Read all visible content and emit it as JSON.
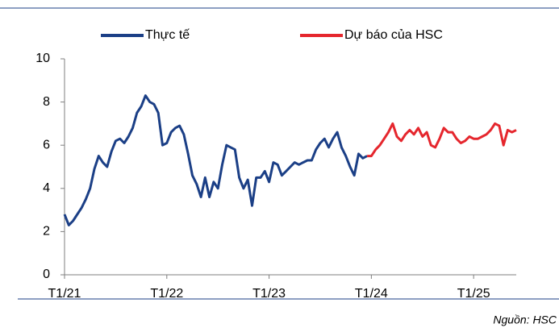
{
  "chart_data": {
    "type": "line",
    "source": "Nguồn: HSC",
    "legend": "top",
    "grid": false,
    "x": [
      0,
      0.5,
      1,
      1.5,
      2,
      2.5,
      3,
      3.5,
      4,
      4.5,
      5,
      5.5,
      6,
      6.5,
      7,
      7.5,
      8,
      8.5,
      9,
      9.5,
      10,
      10.5,
      11,
      11.5,
      12,
      12.5,
      13,
      13.5,
      14,
      14.5,
      15,
      15.5,
      16,
      16.5,
      17,
      17.5,
      18,
      18.5,
      19,
      19.5,
      20,
      20.5,
      21,
      21.5,
      22,
      22.5,
      23,
      23.5,
      24,
      24.5,
      25,
      25.5,
      26,
      26.5,
      27,
      27.5,
      28,
      28.5,
      29,
      29.5,
      30,
      30.5,
      31,
      31.5,
      32,
      32.5,
      33,
      33.5,
      34,
      34.5,
      35,
      35.5,
      36,
      36.5,
      37,
      37.5,
      38,
      38.5,
      39,
      39.5,
      40,
      40.5,
      41,
      41.5,
      42,
      42.5,
      43,
      43.5,
      44,
      44.5,
      45,
      45.5,
      46,
      46.5,
      47,
      47.5,
      48,
      48.5,
      49,
      49.5,
      50,
      50.5,
      51,
      51.5,
      52,
      52.5,
      53
    ],
    "xlim": [
      0,
      53
    ],
    "xticks": [
      {
        "value": 0,
        "label": "T1/21"
      },
      {
        "value": 12,
        "label": "T1/22"
      },
      {
        "value": 24,
        "label": "T1/23"
      },
      {
        "value": 36,
        "label": "T1/24"
      },
      {
        "value": 48,
        "label": "T1/25"
      }
    ],
    "ylim": [
      0,
      10
    ],
    "yticks": [
      0,
      2,
      4,
      6,
      8,
      10
    ],
    "series": [
      {
        "name": "Thực tế",
        "color": "#1b3f86",
        "values": [
          2.8,
          2.3,
          2.5,
          2.8,
          3.1,
          3.5,
          4.0,
          4.9,
          5.5,
          5.2,
          5.0,
          5.7,
          6.2,
          6.3,
          6.1,
          6.4,
          6.8,
          7.5,
          7.8,
          8.3,
          8.0,
          7.9,
          7.5,
          6.0,
          6.1,
          6.6,
          6.8,
          6.9,
          6.5,
          5.6,
          4.6,
          4.2,
          3.6,
          4.5,
          3.6,
          4.3,
          4.0,
          5.1,
          6.0,
          5.9,
          5.8,
          4.5,
          4.0,
          4.4,
          3.2,
          4.5,
          4.5,
          4.8,
          4.3,
          5.2,
          5.1,
          4.6,
          4.8,
          5.0,
          5.2,
          5.1,
          5.2,
          5.3,
          5.3,
          5.8,
          6.1,
          6.3,
          5.9,
          6.3,
          6.6,
          5.9,
          5.5,
          5.0,
          4.6,
          5.6,
          5.4,
          5.5,
          null,
          null,
          null,
          null,
          null,
          null,
          null,
          null,
          null,
          null,
          null,
          null,
          null,
          null,
          null,
          null,
          null,
          null,
          null,
          null,
          null,
          null,
          null,
          null,
          null,
          null,
          null,
          null,
          null,
          null,
          null,
          null,
          null,
          null,
          null
        ]
      },
      {
        "name": "Dự báo của HSC",
        "color": "#e5262d",
        "values": [
          null,
          null,
          null,
          null,
          null,
          null,
          null,
          null,
          null,
          null,
          null,
          null,
          null,
          null,
          null,
          null,
          null,
          null,
          null,
          null,
          null,
          null,
          null,
          null,
          null,
          null,
          null,
          null,
          null,
          null,
          null,
          null,
          null,
          null,
          null,
          null,
          null,
          null,
          null,
          null,
          null,
          null,
          null,
          null,
          null,
          null,
          null,
          null,
          null,
          null,
          null,
          null,
          null,
          null,
          null,
          null,
          null,
          null,
          null,
          null,
          null,
          null,
          null,
          null,
          null,
          null,
          null,
          null,
          null,
          null,
          null,
          5.5,
          5.5,
          5.8,
          6.0,
          6.3,
          6.6,
          7.0,
          6.4,
          6.2,
          6.5,
          6.7,
          6.5,
          6.8,
          6.4,
          6.6,
          6.0,
          5.9,
          6.3,
          6.8,
          6.6,
          6.6,
          6.3,
          6.1,
          6.2,
          6.4,
          6.3,
          6.3,
          6.4,
          6.5,
          6.7,
          7.0,
          6.9,
          6.0,
          6.7,
          6.6,
          6.7
        ]
      }
    ]
  }
}
